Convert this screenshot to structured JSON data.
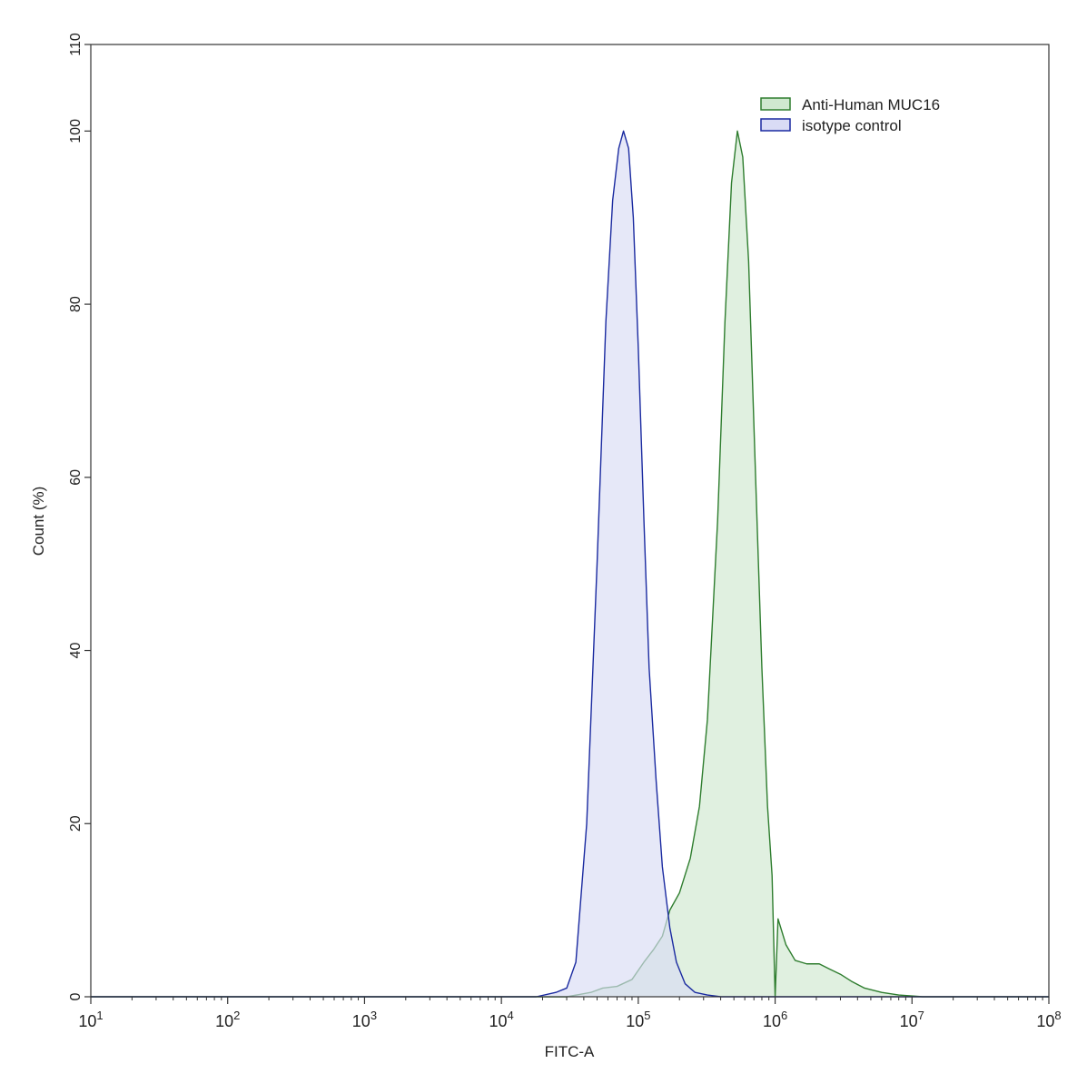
{
  "chart_data": {
    "type": "area",
    "title": "",
    "xlabel": "FITC-A",
    "ylabel": "Count  (%)",
    "xscale": "log",
    "xlim": [
      10,
      100000000
    ],
    "ylim": [
      0,
      110
    ],
    "grid": false,
    "legend_position": "top-right",
    "x_ticks": [
      {
        "base": "10",
        "exp": "1"
      },
      {
        "base": "10",
        "exp": "2"
      },
      {
        "base": "10",
        "exp": "3"
      },
      {
        "base": "10",
        "exp": "4"
      },
      {
        "base": "10",
        "exp": "5"
      },
      {
        "base": "10",
        "exp": "6"
      },
      {
        "base": "10",
        "exp": "7"
      },
      {
        "base": "10",
        "exp": "8"
      }
    ],
    "y_ticks": [
      "0",
      "20",
      "40",
      "60",
      "80",
      "100",
      "110"
    ],
    "series": [
      {
        "name": "Anti-Human MUC16",
        "line_color": "#2e7d2e",
        "fill_color": "#cfe8cf",
        "points": [
          [
            10,
            0
          ],
          [
            1000000,
            0
          ],
          [
            30000,
            0
          ],
          [
            45000,
            0.5
          ],
          [
            55000,
            1
          ],
          [
            70000,
            1.2
          ],
          [
            90000,
            2
          ],
          [
            110000,
            4
          ],
          [
            130000,
            5.5
          ],
          [
            150000,
            7
          ],
          [
            170000,
            10
          ],
          [
            200000,
            12
          ],
          [
            240000,
            16
          ],
          [
            280000,
            22
          ],
          [
            320000,
            32
          ],
          [
            380000,
            55
          ],
          [
            430000,
            78
          ],
          [
            480000,
            94
          ],
          [
            530000,
            100
          ],
          [
            580000,
            97
          ],
          [
            640000,
            85
          ],
          [
            720000,
            60
          ],
          [
            800000,
            38
          ],
          [
            880000,
            22
          ],
          [
            950000,
            14
          ],
          [
            1050000,
            9
          ],
          [
            1200000,
            6
          ],
          [
            1400000,
            4.2
          ],
          [
            1700000,
            3.8
          ],
          [
            2100000,
            3.8
          ],
          [
            2500000,
            3.2
          ],
          [
            3000000,
            2.6
          ],
          [
            3600000,
            1.8
          ],
          [
            4500000,
            1.0
          ],
          [
            6000000,
            0.5
          ],
          [
            8000000,
            0.2
          ],
          [
            12000000,
            0
          ],
          [
            100000000,
            0
          ]
        ]
      },
      {
        "name": "isotype control",
        "line_color": "#1a2aa0",
        "fill_color": "#d9dcf5",
        "points": [
          [
            10,
            0
          ],
          [
            18000,
            0
          ],
          [
            25000,
            0.5
          ],
          [
            30000,
            1
          ],
          [
            35000,
            4
          ],
          [
            42000,
            20
          ],
          [
            50000,
            50
          ],
          [
            58000,
            78
          ],
          [
            65000,
            92
          ],
          [
            72000,
            98
          ],
          [
            78000,
            100
          ],
          [
            85000,
            98
          ],
          [
            92000,
            90
          ],
          [
            100000,
            75
          ],
          [
            110000,
            55
          ],
          [
            120000,
            38
          ],
          [
            135000,
            25
          ],
          [
            150000,
            15
          ],
          [
            170000,
            8
          ],
          [
            190000,
            4
          ],
          [
            220000,
            1.5
          ],
          [
            260000,
            0.5
          ],
          [
            320000,
            0.2
          ],
          [
            400000,
            0
          ],
          [
            100000000,
            0
          ]
        ]
      }
    ]
  }
}
